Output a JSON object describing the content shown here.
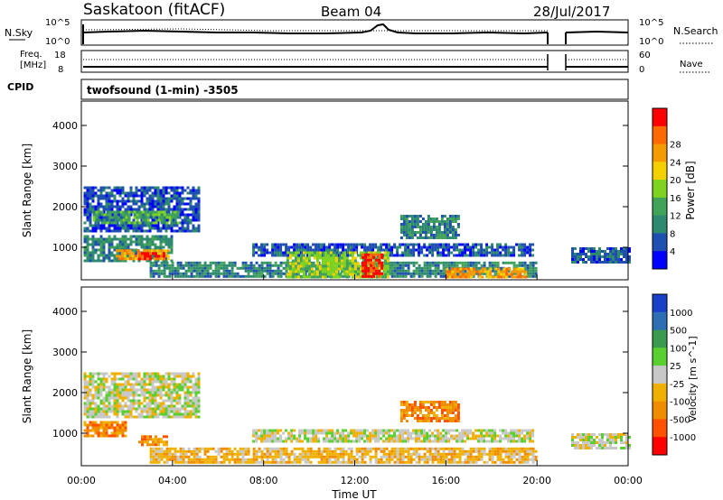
{
  "header": {
    "station": "Saskatoon (fitACF)",
    "beam": "Beam 04",
    "date": "28/Jul/2017"
  },
  "summary": {
    "nsky_label": "N.Sky",
    "nsearch_label": "N.Search",
    "freq_label_1": "Freq.",
    "freq_label_2": "[MHz]",
    "nave_label": "Nave",
    "cpid_label": "CPID",
    "noise_left_ticks": [
      "10^5",
      "10^0"
    ],
    "noise_right_ticks": [
      "10^5",
      "10^0"
    ],
    "freq_left_ticks": [
      "18",
      "8"
    ],
    "nave_right_ticks": [
      "60",
      "0"
    ],
    "cpid_text": "twofsound (1-min) -3505"
  },
  "colors": {
    "power_scale": [
      "#0000ff",
      "#1f4fb0",
      "#2e8a6e",
      "#41a35a",
      "#7ed321",
      "#f5d000",
      "#f59b00",
      "#ff6a00",
      "#ff0000"
    ],
    "velocity_scale": [
      "#1a3fc8",
      "#2e6eb4",
      "#3a9a50",
      "#5ad030",
      "#c8c8c8",
      "#f0b000",
      "#f08c00",
      "#ff5000",
      "#ff0000"
    ]
  },
  "chart_data": [
    {
      "type": "heatmap",
      "title": "",
      "quantity": "Power",
      "ylabel": "Slant Range [km]",
      "ylim": [
        200,
        4600
      ],
      "yticks": [
        "1000",
        "2000",
        "3000",
        "4000"
      ],
      "colorbar_label": "Power [dB]",
      "colorbar_ticks": [
        "4",
        "8",
        "12",
        "16",
        "20",
        "24",
        "28"
      ],
      "regions": [
        {
          "t0": 0.1,
          "t1": 5.2,
          "r0": 1400,
          "r1": 2500,
          "level": 1
        },
        {
          "t0": 0.5,
          "t1": 4.2,
          "r0": 1600,
          "r1": 1900,
          "level": 3
        },
        {
          "t0": 0.1,
          "t1": 4.0,
          "r0": 650,
          "r1": 1300,
          "level": 2
        },
        {
          "t0": 1.5,
          "t1": 3.8,
          "r0": 700,
          "r1": 950,
          "level": 6
        },
        {
          "t0": 2.5,
          "t1": 3.6,
          "r0": 720,
          "r1": 880,
          "level": 8
        },
        {
          "t0": 7.5,
          "t1": 19.8,
          "r0": 800,
          "r1": 1100,
          "level": 1
        },
        {
          "t0": 3.0,
          "t1": 20.0,
          "r0": 250,
          "r1": 650,
          "level": 2
        },
        {
          "t0": 9.0,
          "t1": 13.5,
          "r0": 250,
          "r1": 900,
          "level": 4
        },
        {
          "t0": 12.3,
          "t1": 13.2,
          "r0": 300,
          "r1": 850,
          "level": 8
        },
        {
          "t0": 16.0,
          "t1": 19.5,
          "r0": 250,
          "r1": 500,
          "level": 6
        },
        {
          "t0": 14.0,
          "t1": 16.5,
          "r0": 1200,
          "r1": 1800,
          "level": 2
        },
        {
          "t0": 21.5,
          "t1": 24.0,
          "r0": 600,
          "r1": 1000,
          "level": 1
        }
      ]
    },
    {
      "type": "heatmap",
      "title": "",
      "quantity": "Velocity",
      "xlabel": "Time UT",
      "xticks": [
        "00:00",
        "04:00",
        "08:00",
        "12:00",
        "16:00",
        "20:00",
        "00:00"
      ],
      "xlim_hours": [
        0,
        24
      ],
      "ylabel": "Slant Range [km]",
      "ylim": [
        200,
        4600
      ],
      "yticks": [
        "1000",
        "2000",
        "3000",
        "4000"
      ],
      "colorbar_label": "Velocity [m s^-1]",
      "colorbar_ticks": [
        "1000",
        "500",
        "100",
        "25",
        "-25",
        "-100",
        "-500",
        "-1000"
      ],
      "regions": [
        {
          "t0": 0.1,
          "t1": 5.2,
          "r0": 1400,
          "r1": 2500,
          "level": 4
        },
        {
          "t0": 0.1,
          "t1": 2.0,
          "r0": 900,
          "r1": 1300,
          "level": 6
        },
        {
          "t0": 2.5,
          "t1": 3.8,
          "r0": 700,
          "r1": 950,
          "level": 6
        },
        {
          "t0": 7.5,
          "t1": 19.8,
          "r0": 800,
          "r1": 1100,
          "level": 4
        },
        {
          "t0": 3.0,
          "t1": 20.0,
          "r0": 250,
          "r1": 650,
          "level": 5
        },
        {
          "t0": 14.0,
          "t1": 16.5,
          "r0": 1300,
          "r1": 1800,
          "level": 6
        },
        {
          "t0": 21.5,
          "t1": 24.0,
          "r0": 600,
          "r1": 1000,
          "level": 4
        }
      ]
    }
  ]
}
